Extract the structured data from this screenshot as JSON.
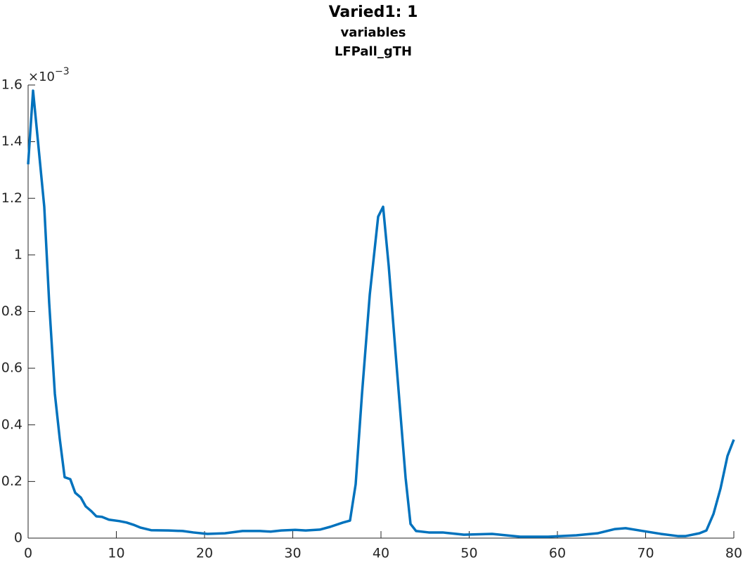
{
  "chart_data": {
    "type": "line",
    "title": "Varied1: 1",
    "subtitle": [
      "variables",
      "LFPall_gTH"
    ],
    "y_exponent": {
      "base": "×10",
      "power": "−3"
    },
    "x": [
      0,
      0.56,
      1.12,
      1.83,
      2.39,
      3.03,
      3.59,
      4.14,
      4.78,
      5.34,
      5.98,
      6.53,
      7.17,
      7.73,
      8.37,
      9.16,
      10.36,
      11.16,
      11.95,
      12.75,
      13.94,
      15.94,
      17.53,
      18.73,
      20.32,
      22.31,
      24.3,
      26.29,
      27.49,
      28.69,
      30.28,
      31.47,
      33.07,
      34.26,
      35.7,
      36.49,
      37.13,
      37.85,
      38.73,
      39.68,
      40.24,
      40.88,
      41.83,
      42.79,
      43.35,
      43.98,
      45.42,
      47.01,
      49.4,
      52.59,
      55.78,
      58.96,
      62.15,
      64.54,
      66.53,
      67.73,
      69.72,
      71.71,
      73.71,
      74.5,
      76.1,
      76.89,
      77.69,
      78.49,
      79.28,
      80
    ],
    "series": [
      {
        "name": "LFPall_gTH",
        "color": "#0072bd",
        "values": [
          1.32,
          1.58,
          1.4,
          1.17,
          0.83,
          0.51,
          0.35,
          0.215,
          0.208,
          0.16,
          0.143,
          0.112,
          0.095,
          0.077,
          0.075,
          0.065,
          0.06,
          0.055,
          0.047,
          0.037,
          0.028,
          0.027,
          0.025,
          0.02,
          0.015,
          0.017,
          0.025,
          0.025,
          0.023,
          0.027,
          0.029,
          0.027,
          0.03,
          0.04,
          0.055,
          0.062,
          0.19,
          0.51,
          0.86,
          1.135,
          1.17,
          0.96,
          0.585,
          0.213,
          0.05,
          0.025,
          0.02,
          0.02,
          0.012,
          0.015,
          0.005,
          0.005,
          0.01,
          0.017,
          0.032,
          0.035,
          0.025,
          0.015,
          0.007,
          0.007,
          0.017,
          0.027,
          0.085,
          0.175,
          0.29,
          0.348
        ]
      }
    ],
    "xlim": [
      0,
      80
    ],
    "xticks": [
      0,
      10,
      20,
      30,
      40,
      50,
      60,
      70,
      80
    ],
    "ylim": [
      0,
      1.6
    ],
    "yticks": [
      0,
      0.2,
      0.4,
      0.6,
      0.8,
      1,
      1.2,
      1.4,
      1.6
    ],
    "grid": false
  }
}
